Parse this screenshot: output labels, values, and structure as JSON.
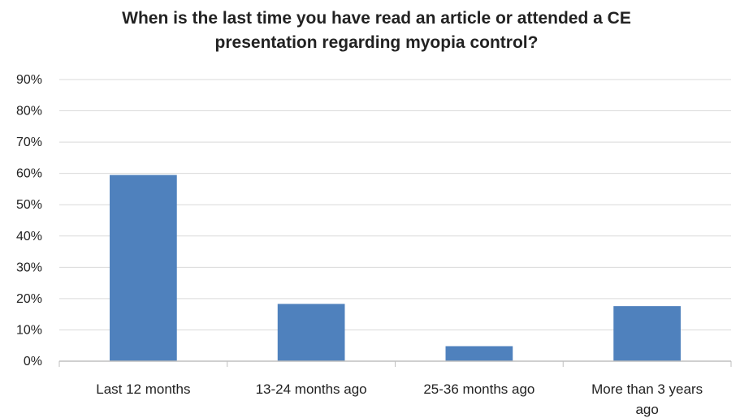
{
  "chart_data": {
    "type": "bar",
    "title": [
      "When is the last time you have read an article or attended a CE",
      "presentation regarding myopia control?"
    ],
    "categories": [
      [
        "Last 12 months"
      ],
      [
        "13-24 months ago"
      ],
      [
        "25-36 months ago"
      ],
      [
        "More than 3 years",
        "ago"
      ]
    ],
    "values": [
      59.5,
      18.3,
      4.8,
      17.6
    ],
    "ylim": [
      0,
      90
    ],
    "yticks": [
      "0%",
      "10%",
      "20%",
      "30%",
      "40%",
      "50%",
      "60%",
      "70%",
      "80%",
      "90%"
    ],
    "grid": true,
    "legend": "none",
    "colors": {
      "bar": "#4f81bd",
      "grid": "#d9d9d9",
      "axis": "#bfbfbf"
    }
  }
}
